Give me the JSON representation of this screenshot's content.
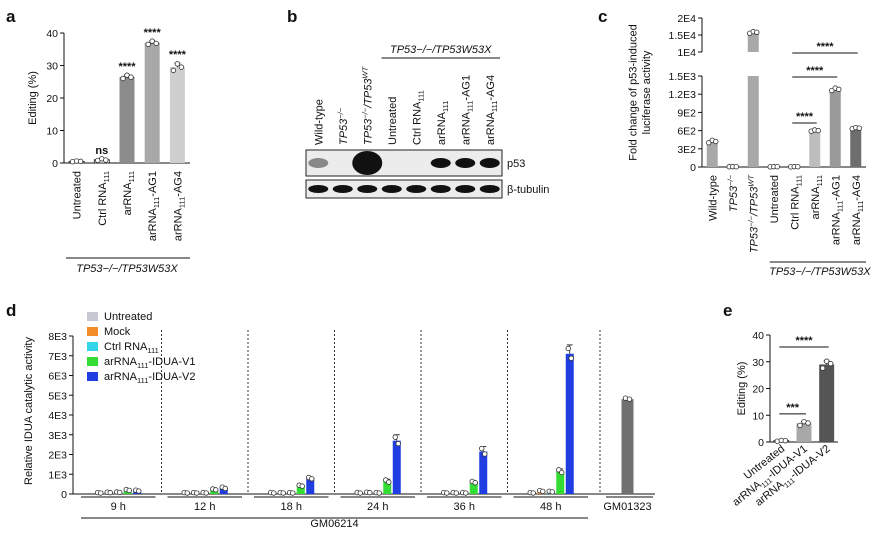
{
  "panel_a": {
    "letter": "a",
    "group_label": "TP53−/−/TP53W53X",
    "chart_data": {
      "type": "bar",
      "categories": [
        "Untreated",
        "Ctrl RNA111",
        "arRNA111",
        "arRNA111-AG1",
        "arRNA111-AG4"
      ],
      "category_labels": [
        {
          "parts": [
            {
              "t": "Untreated"
            }
          ]
        },
        {
          "parts": [
            {
              "t": "Ctrl RNA"
            },
            {
              "t": "111",
              "sub": true
            }
          ]
        },
        {
          "parts": [
            {
              "t": "arRNA"
            },
            {
              "t": "111",
              "sub": true
            }
          ]
        },
        {
          "parts": [
            {
              "t": "arRNA"
            },
            {
              "t": "111",
              "sub": true
            },
            {
              "t": "-AG1"
            }
          ]
        },
        {
          "parts": [
            {
              "t": "arRNA"
            },
            {
              "t": "111",
              "sub": true
            },
            {
              "t": "-AG4"
            }
          ]
        }
      ],
      "values": [
        0.5,
        1.0,
        26.5,
        37.0,
        29.5
      ],
      "points": [
        [
          0.4,
          0.6,
          0.5
        ],
        [
          0.8,
          1.3,
          0.9
        ],
        [
          26.0,
          27.0,
          26.4
        ],
        [
          36.5,
          37.5,
          36.8
        ],
        [
          28.5,
          30.5,
          29.5
        ]
      ],
      "errors": [
        0.2,
        0.3,
        0.6,
        0.6,
        1.2
      ],
      "colors": [
        "#ffffff",
        "#ffffff",
        "#8c8c8c",
        "#a8a8a8",
        "#cfcfcf"
      ],
      "significance": [
        "",
        "ns",
        "****",
        "****",
        "****"
      ],
      "ylabel": "Editing (%)",
      "ylim": [
        0,
        40
      ],
      "yticks": [
        0,
        10,
        20,
        30,
        40
      ]
    }
  },
  "panel_b": {
    "letter": "b",
    "group_label": "TP53−/−/TP53W53X",
    "lane_labels": [
      {
        "parts": [
          {
            "t": "Wild-type"
          }
        ]
      },
      {
        "parts": [
          {
            "t": "TP53",
            "i": true
          },
          {
            "t": "−/−",
            "sup": true,
            "i": true
          }
        ]
      },
      {
        "parts": [
          {
            "t": "TP53",
            "i": true
          },
          {
            "t": "−/−",
            "sup": true,
            "i": true
          },
          {
            "t": "/TP53",
            "i": true
          },
          {
            "t": "WT",
            "sup": true,
            "i": true
          }
        ]
      },
      {
        "parts": [
          {
            "t": "Untreated"
          }
        ]
      },
      {
        "parts": [
          {
            "t": "Ctrl RNA"
          },
          {
            "t": "111",
            "sub": true
          }
        ]
      },
      {
        "parts": [
          {
            "t": "arRNA"
          },
          {
            "t": "111",
            "sub": true
          }
        ]
      },
      {
        "parts": [
          {
            "t": "arRNA"
          },
          {
            "t": "111",
            "sub": true
          },
          {
            "t": "-AG1"
          }
        ]
      },
      {
        "parts": [
          {
            "t": "arRNA"
          },
          {
            "t": "111",
            "sub": true
          },
          {
            "t": "-AG4"
          }
        ]
      }
    ],
    "rows": [
      {
        "label": "p53",
        "intensity": [
          0.25,
          0,
          1.0,
          0,
          0,
          0.9,
          0.9,
          0.85
        ]
      },
      {
        "label": "β-tubulin",
        "intensity": [
          0.9,
          0.9,
          0.9,
          0.9,
          0.9,
          0.9,
          0.9,
          0.9
        ]
      }
    ]
  },
  "panel_c": {
    "letter": "c",
    "group_label": "TP53−/−/TP53W53X",
    "chart_data": {
      "type": "bar",
      "categories": [
        "Wild-type",
        "TP53−/−",
        "TP53−/−/TP53WT",
        "Untreated",
        "Ctrl RNA111",
        "arRNA111",
        "arRNA111-AG1",
        "arRNA111-AG4"
      ],
      "category_labels": [
        {
          "parts": [
            {
              "t": "Wild-type"
            }
          ]
        },
        {
          "parts": [
            {
              "t": "TP53",
              "i": true
            },
            {
              "t": "−/−",
              "sup": true,
              "i": true
            }
          ]
        },
        {
          "parts": [
            {
              "t": "TP53",
              "i": true
            },
            {
              "t": "−/−",
              "sup": true,
              "i": true
            },
            {
              "t": "/TP53",
              "i": true
            },
            {
              "t": "WT",
              "sup": true,
              "i": true
            }
          ]
        },
        {
          "parts": [
            {
              "t": "Untreated"
            }
          ]
        },
        {
          "parts": [
            {
              "t": "Ctrl RNA"
            },
            {
              "t": "111",
              "sub": true
            }
          ]
        },
        {
          "parts": [
            {
              "t": "arRNA"
            },
            {
              "t": "111",
              "sub": true
            }
          ]
        },
        {
          "parts": [
            {
              "t": "arRNA"
            },
            {
              "t": "111",
              "sub": true
            },
            {
              "t": "-AG1"
            }
          ]
        },
        {
          "parts": [
            {
              "t": "arRNA"
            },
            {
              "t": "111",
              "sub": true
            },
            {
              "t": "-AG4"
            }
          ]
        }
      ],
      "values": [
        420,
        5,
        15800,
        5,
        5,
        600,
        1280,
        640
      ],
      "points": [
        [
          400,
          440,
          420
        ],
        [
          4,
          6,
          5
        ],
        [
          15500,
          16000,
          15800
        ],
        [
          3,
          6,
          5
        ],
        [
          3,
          6,
          5
        ],
        [
          590,
          610,
          600
        ],
        [
          1260,
          1300,
          1280
        ],
        [
          630,
          650,
          640
        ]
      ],
      "colors": [
        "#a8a8a8",
        "#a8a8a8",
        "#a8a8a8",
        "#ffffff",
        "#ffffff",
        "#bdbdbd",
        "#9a9a9a",
        "#6e6e6e"
      ],
      "ylabel": "Fold change of p53-induced luciferase activity",
      "lower_yticks": [
        {
          "v": 0,
          "label": "0"
        },
        {
          "v": 300,
          "label": "3E2"
        },
        {
          "v": 600,
          "label": "6E2"
        },
        {
          "v": 900,
          "label": "9E2"
        },
        {
          "v": 1200,
          "label": "1.2E3"
        },
        {
          "v": 1500,
          "label": "1.5E3"
        }
      ],
      "upper_yticks": [
        {
          "v": 10000,
          "label": "1E4"
        },
        {
          "v": 15000,
          "label": "1.5E4"
        },
        {
          "v": 20000,
          "label": "2E4"
        }
      ],
      "ylim_lower": [
        0,
        1500
      ],
      "ylim_upper": [
        10000,
        20000
      ],
      "comparisons": [
        {
          "from": 4,
          "to": 5,
          "label": "****"
        },
        {
          "from": 4,
          "to": 6,
          "label": "****"
        },
        {
          "from": 4,
          "to": 7,
          "label": "****"
        }
      ]
    }
  },
  "panel_d": {
    "letter": "d",
    "chart_data": {
      "type": "bar",
      "ylabel": "Relative IDUA catalytic activity",
      "ylim": [
        0,
        8000
      ],
      "yticks": [
        {
          "v": 0,
          "label": "0"
        },
        {
          "v": 1000,
          "label": "1E3"
        },
        {
          "v": 2000,
          "label": "2E3"
        },
        {
          "v": 3000,
          "label": "3E3"
        },
        {
          "v": 4000,
          "label": "4E3"
        },
        {
          "v": 5000,
          "label": "5E3"
        },
        {
          "v": 6000,
          "label": "6E3"
        },
        {
          "v": 7000,
          "label": "7E3"
        },
        {
          "v": 8000,
          "label": "8E3"
        }
      ],
      "legend": [
        {
          "parts": [
            {
              "t": "Untreated"
            }
          ],
          "color": "#c8c8d2"
        },
        {
          "parts": [
            {
              "t": "Mock"
            }
          ],
          "color": "#f28c28"
        },
        {
          "parts": [
            {
              "t": "Ctrl RNA"
            },
            {
              "t": "111",
              "sub": true
            }
          ],
          "color": "#33d6e8"
        },
        {
          "parts": [
            {
              "t": "arRNA"
            },
            {
              "t": "111",
              "sub": true
            },
            {
              "t": "-IDUA-V1"
            }
          ],
          "color": "#33dd33"
        },
        {
          "parts": [
            {
              "t": "arRNA"
            },
            {
              "t": "111",
              "sub": true
            },
            {
              "t": "-IDUA-V2"
            }
          ],
          "color": "#1f3de0"
        }
      ],
      "groups": [
        "9 h",
        "12 h",
        "18 h",
        "24 h",
        "36 h",
        "48 h"
      ],
      "series": [
        {
          "name": "Untreated",
          "values": [
            60,
            60,
            60,
            60,
            60,
            60
          ]
        },
        {
          "name": "Mock",
          "values": [
            80,
            60,
            60,
            80,
            60,
            150
          ]
        },
        {
          "name": "Ctrl RNA111",
          "values": [
            90,
            60,
            60,
            60,
            60,
            120
          ]
        },
        {
          "name": "arRNA111-IDUA-V1",
          "values": [
            200,
            230,
            420,
            650,
            600,
            1150
          ]
        },
        {
          "name": "arRNA111-IDUA-V2",
          "values": [
            170,
            310,
            800,
            2700,
            2150,
            7100
          ]
        }
      ],
      "errors": [
        [
          20,
          20,
          20,
          20,
          20,
          20
        ],
        [
          20,
          20,
          20,
          20,
          20,
          40
        ],
        [
          20,
          20,
          20,
          20,
          20,
          30
        ],
        [
          40,
          40,
          40,
          100,
          60,
          120
        ],
        [
          40,
          60,
          60,
          300,
          250,
          450
        ]
      ],
      "extra_bar": {
        "label": "GM01323",
        "value": 4800,
        "color": "#707070"
      },
      "cell_line_label": "GM06214"
    }
  },
  "panel_e": {
    "letter": "e",
    "chart_data": {
      "type": "bar",
      "categories": [
        "Untreated",
        "arRNA111-IDUA-V1",
        "arRNA111-IDUA-V2"
      ],
      "category_labels": [
        {
          "parts": [
            {
              "t": "Untreated"
            }
          ]
        },
        {
          "parts": [
            {
              "t": "arRNA"
            },
            {
              "t": "111",
              "sub": true
            },
            {
              "t": "-IDUA-V1"
            }
          ]
        },
        {
          "parts": [
            {
              "t": "arRNA"
            },
            {
              "t": "111",
              "sub": true
            },
            {
              "t": "-IDUA-V2"
            }
          ]
        }
      ],
      "values": [
        0.5,
        7.0,
        29.0
      ],
      "points": [
        [
          0.3,
          0.6,
          0.5
        ],
        [
          6.2,
          7.6,
          7.1
        ],
        [
          27.6,
          30.2,
          29.3
        ]
      ],
      "errors": [
        0.2,
        0.7,
        1.2
      ],
      "colors": [
        "#ffffff",
        "#a8a8a8",
        "#555555"
      ],
      "ylabel": "Editing (%)",
      "ylim": [
        0,
        40
      ],
      "yticks": [
        0,
        10,
        20,
        30,
        40
      ],
      "comparisons": [
        {
          "from": 0,
          "to": 1,
          "label": "***"
        },
        {
          "from": 0,
          "to": 2,
          "label": "****"
        }
      ]
    }
  }
}
